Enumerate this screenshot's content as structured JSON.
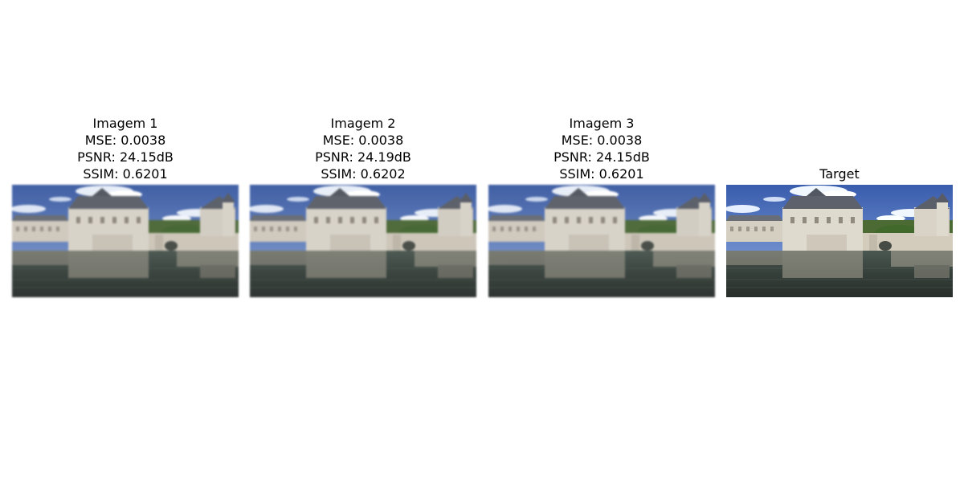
{
  "figure": {
    "panels": [
      {
        "title": "Imagem 1",
        "metrics": [
          "MSE: 0.0038",
          "PSNR: 24.15dB",
          "SSIM: 0.6201"
        ]
      },
      {
        "title": "Imagem 2",
        "metrics": [
          "MSE: 0.0038",
          "PSNR: 24.19dB",
          "SSIM: 0.6202"
        ]
      },
      {
        "title": "Imagem 3",
        "metrics": [
          "MSE: 0.0038",
          "PSNR: 24.15dB",
          "SSIM: 0.6201"
        ]
      },
      {
        "title": "Target",
        "metrics": []
      }
    ]
  }
}
